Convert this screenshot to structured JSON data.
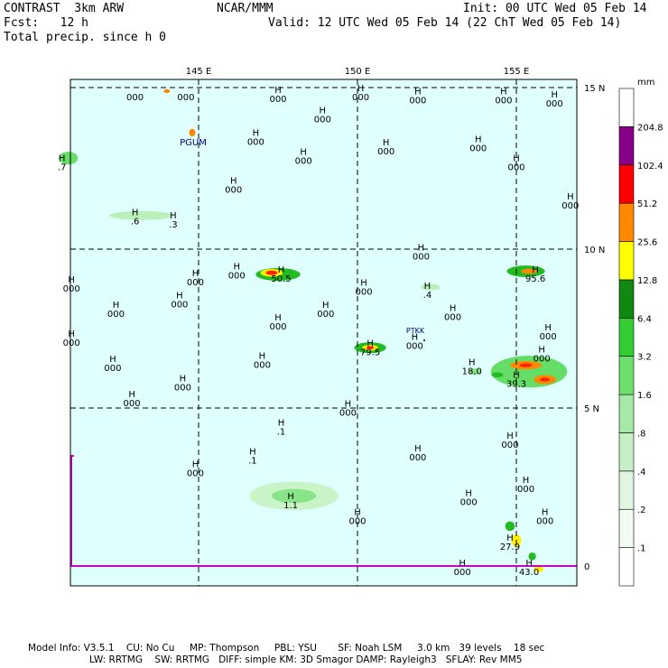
{
  "header": {
    "model": "CONTRAST  3km ARW",
    "fcst": "Fcst:   12 h",
    "field": "Total precip. since h 0",
    "org": "NCAR/MMM",
    "init": "Init: 00 UTC Wed 05 Feb 14",
    "valid": "Valid: 12 UTC Wed 05 Feb 14 (22 ChT Wed 05 Feb 14)"
  },
  "map": {
    "ocean_color": "#e0ffff",
    "lon_labels": [
      "145 E",
      "150 E",
      "155 E"
    ],
    "lat_labels": [
      "15 N",
      "10 N",
      "5 N",
      "0"
    ],
    "stations": [
      {
        "name": "PGUM"
      },
      {
        "name": "PTKK"
      }
    ],
    "pressure_centers": [
      {
        "symbol": "",
        "value": "000",
        "lon": 143.0,
        "lat": 14.9
      },
      {
        "symbol": "",
        "value": "000",
        "lon": 144.6,
        "lat": 14.9
      },
      {
        "symbol": "H",
        "value": "000",
        "lon": 147.5,
        "lat": 14.85
      },
      {
        "symbol": "H",
        "value": "000",
        "lon": 150.1,
        "lat": 14.9
      },
      {
        "symbol": "H",
        "value": "000",
        "lon": 151.9,
        "lat": 14.8
      },
      {
        "symbol": "H",
        "value": "000",
        "lon": 154.6,
        "lat": 14.8
      },
      {
        "symbol": "H",
        "value": "000",
        "lon": 156.2,
        "lat": 14.7
      },
      {
        "symbol": "H",
        "value": "000",
        "lon": 148.9,
        "lat": 14.2
      },
      {
        "symbol": "H",
        "value": "000",
        "lon": 146.8,
        "lat": 13.5
      },
      {
        "symbol": "H",
        "value": "000",
        "lon": 150.9,
        "lat": 13.2
      },
      {
        "symbol": "H",
        "value": "000",
        "lon": 153.8,
        "lat": 13.3
      },
      {
        "symbol": "H",
        "value": "000",
        "lon": 148.3,
        "lat": 12.9
      },
      {
        "symbol": "H",
        "value": "000",
        "lon": 155.0,
        "lat": 12.7
      },
      {
        "symbol": "H",
        "value": "000",
        "lon": 146.1,
        "lat": 12.0
      },
      {
        "symbol": "H",
        "value": "000",
        "lon": 156.7,
        "lat": 11.5
      },
      {
        "symbol": "H",
        "value": "000",
        "lon": 152.0,
        "lat": 9.9
      },
      {
        "symbol": "H",
        "value": "000",
        "lon": 144.9,
        "lat": 9.1
      },
      {
        "symbol": "H",
        "value": "000",
        "lon": 146.2,
        "lat": 9.3
      },
      {
        "symbol": "H",
        "value": "000",
        "lon": 141.0,
        "lat": 8.9
      },
      {
        "symbol": "H",
        "value": "000",
        "lon": 150.2,
        "lat": 8.8
      },
      {
        "symbol": "H",
        "value": "000",
        "lon": 144.4,
        "lat": 8.4
      },
      {
        "symbol": "H",
        "value": "000",
        "lon": 142.4,
        "lat": 8.1
      },
      {
        "symbol": "H",
        "value": "000",
        "lon": 149.0,
        "lat": 8.1
      },
      {
        "symbol": "H",
        "value": "000",
        "lon": 147.5,
        "lat": 7.7
      },
      {
        "symbol": "H",
        "value": "000",
        "lon": 153.0,
        "lat": 8.0
      },
      {
        "symbol": "H",
        "value": "000",
        "lon": 156.0,
        "lat": 7.4
      },
      {
        "symbol": "H",
        "value": "000",
        "lon": 141.0,
        "lat": 7.2
      },
      {
        "symbol": "H",
        "value": "000",
        "lon": 151.8,
        "lat": 7.1
      },
      {
        "symbol": "H",
        "value": "000",
        "lon": 155.8,
        "lat": 6.7
      },
      {
        "symbol": "H",
        "value": "000",
        "lon": 142.3,
        "lat": 6.4
      },
      {
        "symbol": "H",
        "value": "000",
        "lon": 147.0,
        "lat": 6.5
      },
      {
        "symbol": "H",
        "value": "000",
        "lon": 144.5,
        "lat": 5.8
      },
      {
        "symbol": "H",
        "value": "000",
        "lon": 142.9,
        "lat": 5.3
      },
      {
        "symbol": "H",
        "value": "000",
        "lon": 149.7,
        "lat": 5.0
      },
      {
        "symbol": "H",
        "value": ".1",
        "lon": 147.6,
        "lat": 4.4
      },
      {
        "symbol": "H",
        "value": "000",
        "lon": 154.8,
        "lat": 4.0
      },
      {
        "symbol": "H",
        "value": "000",
        "lon": 151.9,
        "lat": 3.6
      },
      {
        "symbol": "H",
        "value": ".1",
        "lon": 146.7,
        "lat": 3.5
      },
      {
        "symbol": "H",
        "value": "000",
        "lon": 144.9,
        "lat": 3.1
      },
      {
        "symbol": "H",
        "value": "000",
        "lon": 155.3,
        "lat": 2.6
      },
      {
        "symbol": "H",
        "value": "000",
        "lon": 153.5,
        "lat": 2.2
      },
      {
        "symbol": "H",
        "value": "000",
        "lon": 155.9,
        "lat": 1.6
      },
      {
        "symbol": "H",
        "value": "000",
        "lon": 150.0,
        "lat": 1.6
      },
      {
        "symbol": "H",
        "value": "000",
        "lon": 153.3,
        "lat": 0.0
      }
    ],
    "precip_maxima": [
      {
        "symbol": "H",
        "value": "50.5",
        "lon": 147.6,
        "lat": 9.2
      },
      {
        "symbol": "H",
        "value": "95.6",
        "lon": 155.6,
        "lat": 9.2
      },
      {
        "symbol": "H",
        "value": ".4",
        "lon": 152.2,
        "lat": 8.7
      },
      {
        "symbol": "H",
        "value": "79.5",
        "lon": 150.4,
        "lat": 6.9
      },
      {
        "symbol": "H",
        "value": "18.0",
        "lon": 153.6,
        "lat": 6.3
      },
      {
        "symbol": "H",
        "value": "39.3",
        "lon": 155.0,
        "lat": 5.9
      },
      {
        "symbol": "H",
        "value": ".6",
        "lon": 143.0,
        "lat": 11.0
      },
      {
        "symbol": "H",
        "value": ".3",
        "lon": 144.2,
        "lat": 10.9
      },
      {
        "symbol": "H",
        "value": ".7",
        "lon": 140.7,
        "lat": 12.7
      },
      {
        "symbol": "H",
        "value": "1.1",
        "lon": 147.9,
        "lat": 2.1
      },
      {
        "symbol": "H",
        "value": "27.9",
        "lon": 154.8,
        "lat": 0.8
      },
      {
        "symbol": "H",
        "value": "43.0",
        "lon": 155.4,
        "lat": 0.0
      }
    ],
    "precip_blobs": [
      {
        "lon": 143.2,
        "lat": 11.0,
        "rx": 1.0,
        "ry": 0.14,
        "color": "#b8f0b8"
      },
      {
        "lon": 140.9,
        "lat": 12.8,
        "rx": 0.3,
        "ry": 0.2,
        "color": "#66dd66"
      },
      {
        "lon": 148.0,
        "lat": 2.2,
        "rx": 1.4,
        "ry": 0.45,
        "color": "#c8f4c8"
      },
      {
        "lon": 148.0,
        "lat": 2.2,
        "rx": 0.7,
        "ry": 0.22,
        "color": "#88e488"
      },
      {
        "lon": 147.5,
        "lat": 9.15,
        "rx": 0.7,
        "ry": 0.2,
        "color": "#22bb22"
      },
      {
        "lon": 147.3,
        "lat": 9.2,
        "rx": 0.35,
        "ry": 0.12,
        "color": "#ffee00"
      },
      {
        "lon": 147.3,
        "lat": 9.2,
        "rx": 0.18,
        "ry": 0.07,
        "color": "#ff2200"
      },
      {
        "lon": 150.4,
        "lat": 6.85,
        "rx": 0.5,
        "ry": 0.17,
        "color": "#22bb22"
      },
      {
        "lon": 150.4,
        "lat": 6.85,
        "rx": 0.25,
        "ry": 0.09,
        "color": "#ffee00"
      },
      {
        "lon": 150.4,
        "lat": 6.85,
        "rx": 0.12,
        "ry": 0.05,
        "color": "#ff2200"
      },
      {
        "lon": 155.3,
        "lat": 9.25,
        "rx": 0.6,
        "ry": 0.18,
        "color": "#22bb22"
      },
      {
        "lon": 155.4,
        "lat": 9.25,
        "rx": 0.25,
        "ry": 0.08,
        "color": "#ff8800"
      },
      {
        "lon": 152.3,
        "lat": 8.75,
        "rx": 0.3,
        "ry": 0.1,
        "color": "#b8f0b8"
      },
      {
        "lon": 155.4,
        "lat": 6.1,
        "rx": 1.2,
        "ry": 0.5,
        "color": "#66dd66"
      },
      {
        "lon": 155.3,
        "lat": 6.3,
        "rx": 0.5,
        "ry": 0.13,
        "color": "#ff8800"
      },
      {
        "lon": 155.3,
        "lat": 6.3,
        "rx": 0.2,
        "ry": 0.06,
        "color": "#ff2200"
      },
      {
        "lon": 155.9,
        "lat": 5.85,
        "rx": 0.35,
        "ry": 0.14,
        "color": "#ff8800"
      },
      {
        "lon": 155.9,
        "lat": 5.85,
        "rx": 0.15,
        "ry": 0.06,
        "color": "#ff2200"
      },
      {
        "lon": 154.4,
        "lat": 6.0,
        "rx": 0.18,
        "ry": 0.08,
        "color": "#22bb22"
      },
      {
        "lon": 153.7,
        "lat": 6.1,
        "rx": 0.2,
        "ry": 0.1,
        "color": "#88e488"
      },
      {
        "lon": 154.8,
        "lat": 1.25,
        "rx": 0.15,
        "ry": 0.15,
        "color": "#22bb22"
      },
      {
        "lon": 155.0,
        "lat": 0.8,
        "rx": 0.15,
        "ry": 0.2,
        "color": "#ffee00"
      },
      {
        "lon": 155.5,
        "lat": 0.3,
        "rx": 0.12,
        "ry": 0.12,
        "color": "#22bb22"
      },
      {
        "lon": 155.7,
        "lat": -0.1,
        "rx": 0.15,
        "ry": 0.1,
        "color": "#ffee00"
      },
      {
        "lon": 144.8,
        "lat": 13.6,
        "rx": 0.1,
        "ry": 0.12,
        "color": "#ff8800"
      },
      {
        "lon": 144.0,
        "lat": 14.9,
        "rx": 0.1,
        "ry": 0.06,
        "color": "#ff8800"
      }
    ]
  },
  "legend": {
    "unit": "mm",
    "levels": [
      {
        "value": ".1",
        "color": "#ffffff"
      },
      {
        "value": ".2",
        "color": "#f2fbf2"
      },
      {
        "value": ".4",
        "color": "#e0f6e0"
      },
      {
        "value": ".8",
        "color": "#c6efc6"
      },
      {
        "value": "1.6",
        "color": "#a6e8a6"
      },
      {
        "value": "3.2",
        "color": "#6ede6e"
      },
      {
        "value": "6.4",
        "color": "#33cc33"
      },
      {
        "value": "12.8",
        "color": "#118811"
      },
      {
        "value": "25.6",
        "color": "#ffff00"
      },
      {
        "value": "51.2",
        "color": "#ff8800"
      },
      {
        "value": "102.4",
        "color": "#ff0000"
      },
      {
        "value": "204.8",
        "color": "#880088"
      },
      {
        "value": "",
        "color": "#ffffff"
      }
    ]
  },
  "footer": {
    "line1": "Model Info: V3.5.1    CU: No Cu     MP: Thompson     PBL: YSU       SF: Noah LSM     3.0 km   39 levels    18 sec",
    "line2": "LW: RRTMG    SW: RRTMG   DIFF: simple KM: 3D Smagor DAMP: Rayleigh3   SFLAY: Rev MM5"
  }
}
